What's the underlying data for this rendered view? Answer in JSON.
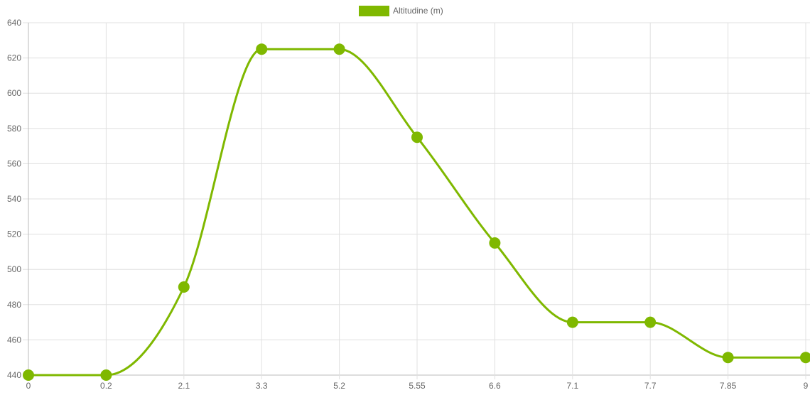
{
  "chart_data": {
    "type": "line",
    "x": [
      "0",
      "0.2",
      "2.1",
      "3.3",
      "5.2",
      "5.55",
      "6.6",
      "7.1",
      "7.7",
      "7.85",
      "9"
    ],
    "series": [
      {
        "name": "Altitudine (m)",
        "values": [
          440,
          440,
          490,
          625,
          625,
          575,
          515,
          470,
          470,
          450,
          450
        ]
      }
    ],
    "ylim": [
      440,
      640
    ],
    "y_ticks": [
      440,
      460,
      480,
      500,
      520,
      540,
      560,
      580,
      600,
      620,
      640
    ],
    "grid": true,
    "legend_position": "top-center",
    "curve": "smooth",
    "series_color": "#7fb800"
  }
}
